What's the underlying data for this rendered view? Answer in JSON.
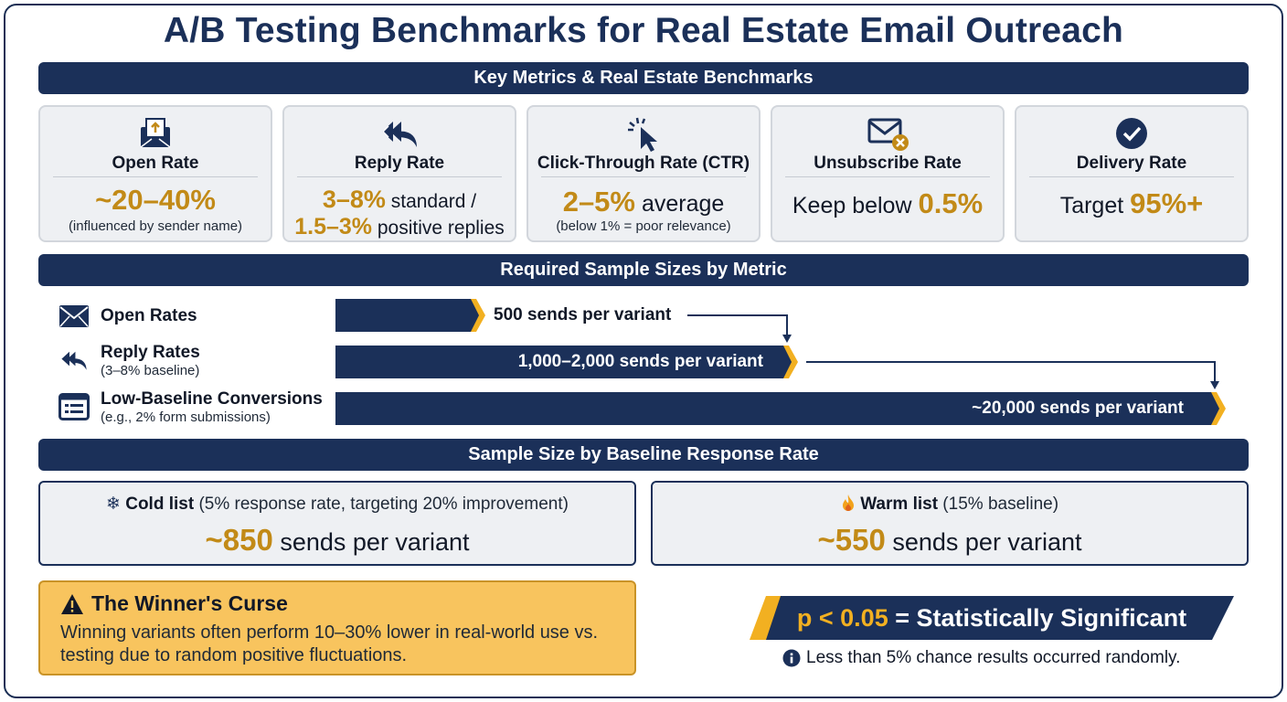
{
  "title": "A/B Testing Benchmarks for Real Estate Email Outreach",
  "sections": {
    "metrics": "Key Metrics & Real Estate Benchmarks",
    "samples": "Required Sample Sizes by Metric",
    "baseline": "Sample Size by Baseline Response Rate"
  },
  "cards": {
    "open": {
      "icon": "envelope-upload-icon",
      "name": "Open Rate",
      "value": "~20–40%",
      "note": "(influenced by sender name)"
    },
    "reply": {
      "icon": "reply-arrow-icon",
      "name": "Reply Rate",
      "value1": "3–8%",
      "text1": " standard /",
      "value2": "1.5–3%",
      "text2": " positive replies"
    },
    "ctr": {
      "icon": "cursor-click-icon",
      "name": "Click-Through Rate (CTR)",
      "value": "2–5%",
      "text": " average",
      "note": "(below 1% = poor relevance)"
    },
    "unsub": {
      "icon": "envelope-x-icon",
      "name": "Unsubscribe Rate",
      "prefix": "Keep below ",
      "value": "0.5%"
    },
    "delivery": {
      "icon": "check-circle-icon",
      "name": "Delivery Rate",
      "prefix": "Target ",
      "value": "95%+"
    }
  },
  "sample_rows": [
    {
      "icon": "envelope-icon",
      "label": "Open Rates",
      "sub": "",
      "sends": "500 sends per variant"
    },
    {
      "icon": "reply-arrow-icon",
      "label": "Reply Rates",
      "sub": "(3–8% baseline)",
      "sends": "1,000–2,000 sends per variant"
    },
    {
      "icon": "form-list-icon",
      "label": "Low-Baseline Conversions",
      "sub": "(e.g., 2% form submissions)",
      "sends": "~20,000 sends per variant"
    }
  ],
  "lists": {
    "cold": {
      "icon": "snowflake-icon",
      "name": "Cold list",
      "detail": " (5% response rate, targeting 20% improvement)",
      "value": "~850",
      "unit": " sends per variant"
    },
    "warm": {
      "icon": "fire-icon",
      "name": "Warm list",
      "detail": " (15% baseline)",
      "value": "~550",
      "unit": " sends per variant"
    }
  },
  "curse": {
    "title": "The Winner's Curse",
    "body": "Winning variants often perform 10–30% lower in real-world use vs. testing due to random positive fluctuations."
  },
  "significance": {
    "value": "p < 0.05",
    "text": " = Statistically Significant",
    "note": "Less than 5% chance results occurred randomly."
  },
  "colors": {
    "navy": "#1b3059",
    "gold": "#c28a17",
    "amber": "#f8c45e",
    "card": "#eef0f3"
  }
}
